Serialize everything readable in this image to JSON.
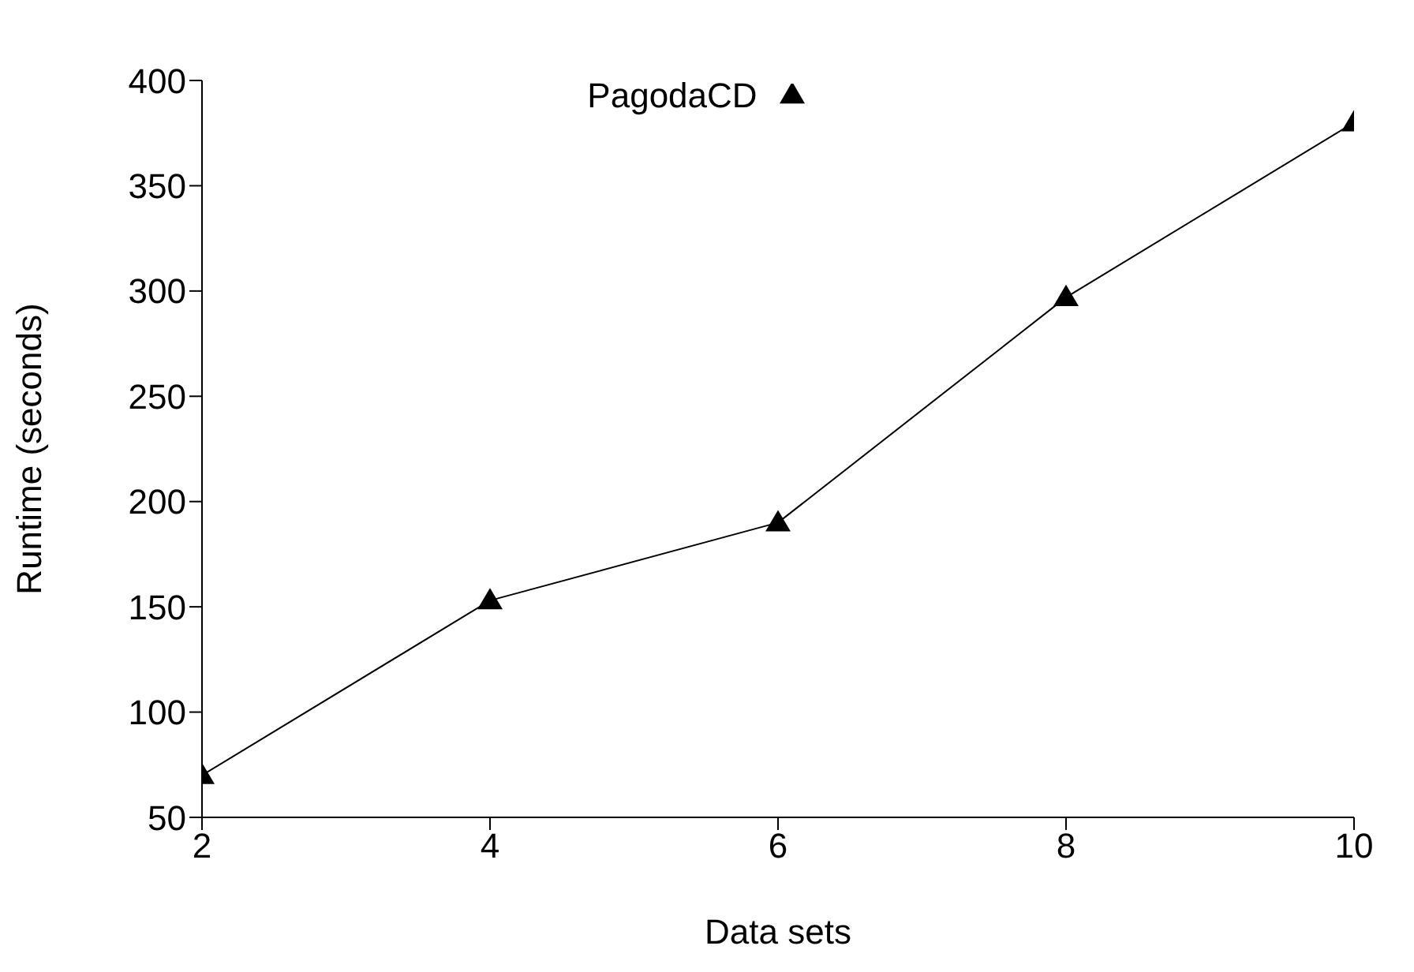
{
  "chart_data": {
    "type": "line",
    "xlabel": "Data sets",
    "ylabel": "Runtime (seconds)",
    "x": [
      2,
      4,
      6,
      8,
      10
    ],
    "series": [
      {
        "name": "PagodaCD",
        "color": "#000000",
        "values": [
          70,
          153,
          190,
          297,
          380
        ]
      }
    ],
    "xlim": [
      2,
      10
    ],
    "xticks": [
      2,
      4,
      6,
      8,
      10
    ],
    "ylim": [
      50,
      400
    ],
    "yticks": [
      50,
      100,
      150,
      200,
      250,
      300,
      350,
      400
    ],
    "grid": false,
    "legend": "top",
    "marker": "triangle",
    "line_style": "solid"
  }
}
